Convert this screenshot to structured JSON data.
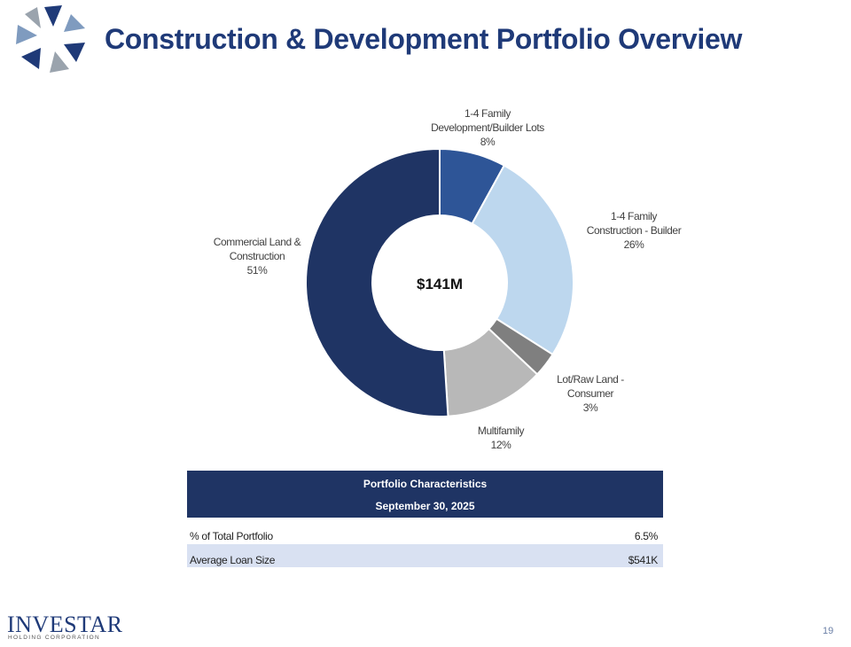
{
  "title": "Construction & Development Portfolio Overview",
  "chart_data": {
    "type": "donut",
    "categories": [
      "1-4 Family\nDevelopment/Builder Lots",
      "1-4 Family\nConstruction - Builder",
      "Lot/Raw Land -\nConsumer",
      "Multifamily",
      "Commercial Land &\nConstruction"
    ],
    "values": [
      8,
      26,
      3,
      12,
      51
    ],
    "value_labels": [
      "8%",
      "26%",
      "3%",
      "12%",
      "51%"
    ],
    "colors": [
      "#2e5597",
      "#bdd7ee",
      "#7f7f7f",
      "#b8b8b8",
      "#1f3464"
    ],
    "center_label": "$141M"
  },
  "table": {
    "header": [
      "Portfolio Characteristics",
      "September 30, 2025"
    ],
    "rows": [
      [
        "% of Total Portfolio",
        "6.5%"
      ],
      [
        "Average Loan Size",
        "$541K"
      ]
    ]
  },
  "footer": {
    "brand": "INVESTAR",
    "brand_sub": "HOLDING CORPORATION",
    "page": "19"
  }
}
